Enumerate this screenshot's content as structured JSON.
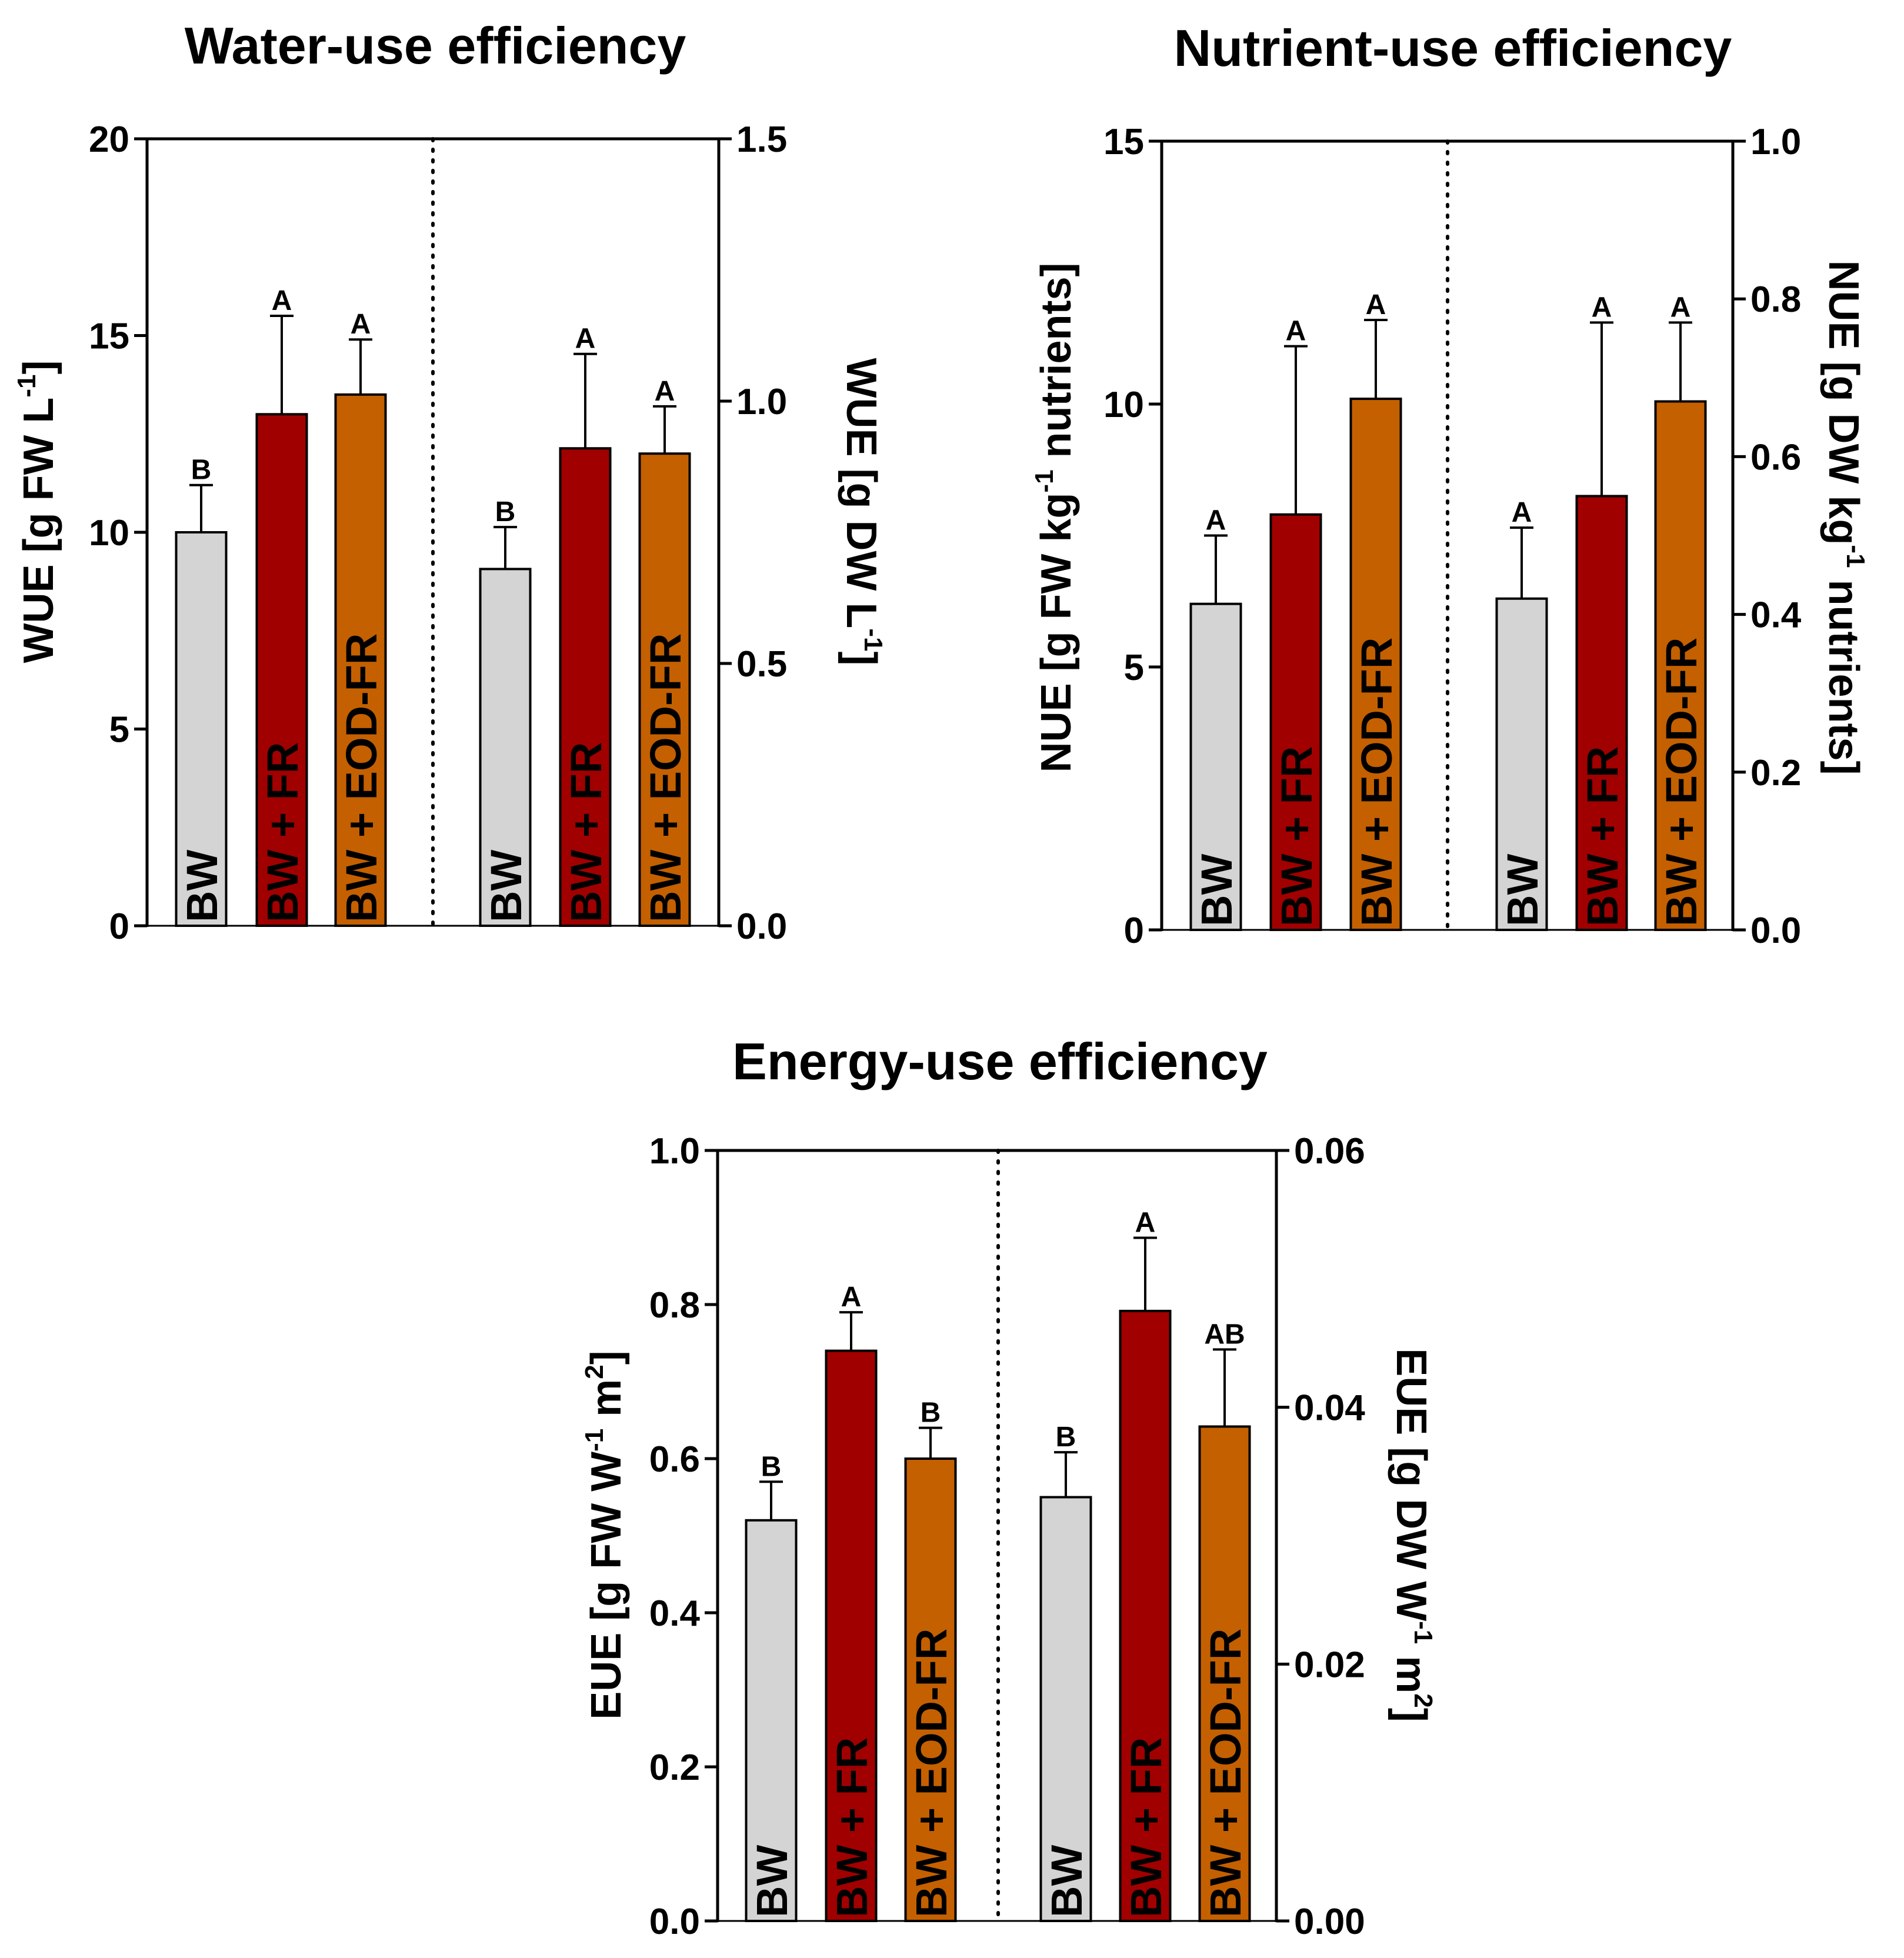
{
  "colors": {
    "BW": "#d4d4d4",
    "BW + FR": "#a10000",
    "BW + EOD-FR": "#c46000",
    "axis": "#000000"
  },
  "chart_data": [
    {
      "type": "bar",
      "id": "wue",
      "title": "Water-use efficiency",
      "categories": [
        "BW",
        "BW + FR",
        "BW + EOD-FR"
      ],
      "left_axis": {
        "label_parts": [
          "WUE [g FW L",
          "-1",
          "]"
        ],
        "ylim": [
          0,
          20
        ],
        "ticks": [
          "0",
          "5",
          "10",
          "15",
          "20"
        ],
        "series": {
          "values": [
            10.0,
            13.0,
            13.5
          ],
          "errors": [
            1.2,
            2.5,
            1.4
          ],
          "letters": [
            "B",
            "A",
            "A"
          ]
        }
      },
      "right_axis": {
        "label_parts": [
          "WUE [g DW L",
          "-1",
          "]"
        ],
        "ylim": [
          0,
          1.5
        ],
        "ticks": [
          "0.0",
          "0.5",
          "1.0",
          "1.5"
        ],
        "series": {
          "values": [
            0.68,
            0.91,
            0.9
          ],
          "errors": [
            0.08,
            0.18,
            0.09
          ],
          "letters": [
            "B",
            "A",
            "A"
          ]
        }
      }
    },
    {
      "type": "bar",
      "id": "nue",
      "title": "Nutrient-use efficiency",
      "categories": [
        "BW",
        "BW + FR",
        "BW + EOD-FR"
      ],
      "left_axis": {
        "label_parts": [
          "NUE [g FW kg",
          "-1",
          " nutrients]"
        ],
        "ylim": [
          0,
          15
        ],
        "ticks": [
          "0",
          "5",
          "10",
          "15"
        ],
        "series": {
          "values": [
            6.2,
            7.9,
            10.1
          ],
          "errors": [
            1.3,
            3.2,
            1.5
          ],
          "letters": [
            "A",
            "A",
            "A"
          ]
        }
      },
      "right_axis": {
        "label_parts": [
          "NUE [g DW kg",
          "-1",
          " nutrients]"
        ],
        "ylim": [
          0,
          1.0
        ],
        "ticks": [
          "0.0",
          "0.2",
          "0.4",
          "0.6",
          "0.8",
          "1.0"
        ],
        "series": {
          "values": [
            0.42,
            0.55,
            0.67
          ],
          "errors": [
            0.09,
            0.22,
            0.1
          ],
          "letters": [
            "A",
            "A",
            "A"
          ]
        }
      }
    },
    {
      "type": "bar",
      "id": "eue",
      "title": "Energy-use efficiency",
      "categories": [
        "BW",
        "BW + FR",
        "BW + EOD-FR"
      ],
      "left_axis": {
        "label_parts": [
          "EUE [g FW W",
          "-1",
          " m",
          "2",
          "]"
        ],
        "ylim": [
          0,
          1.0
        ],
        "ticks": [
          "0.0",
          "0.2",
          "0.4",
          "0.6",
          "0.8",
          "1.0"
        ],
        "series": {
          "values": [
            0.52,
            0.74,
            0.6
          ],
          "errors": [
            0.05,
            0.05,
            0.04
          ],
          "letters": [
            "B",
            "A",
            "B"
          ]
        }
      },
      "right_axis": {
        "label_parts": [
          "EUE [g DW W",
          "-1",
          " m",
          "2",
          "]"
        ],
        "ylim": [
          0,
          0.06
        ],
        "ticks": [
          "0.00",
          "0.02",
          "0.04",
          "0.06"
        ],
        "series": {
          "values": [
            0.033,
            0.0475,
            0.0385
          ],
          "errors": [
            0.0035,
            0.0057,
            0.006
          ],
          "letters": [
            "B",
            "A",
            "AB"
          ]
        }
      }
    }
  ]
}
